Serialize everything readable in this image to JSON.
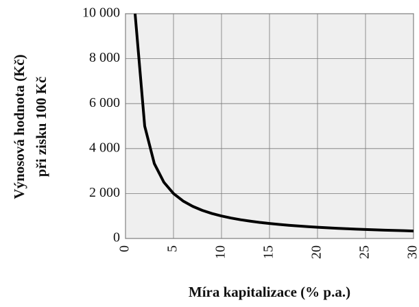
{
  "chart_data": {
    "type": "line",
    "xlabel": "Míra kapitalizace (% p.a.)",
    "ylabel": [
      "Výnosová hodnota (Kč)",
      "při zisku 100 Kč"
    ],
    "x": [
      1,
      2,
      3,
      4,
      5,
      6,
      7,
      8,
      9,
      10,
      11,
      12,
      13,
      14,
      15,
      16,
      17,
      18,
      19,
      20,
      21,
      22,
      23,
      24,
      25,
      26,
      27,
      28,
      29,
      30
    ],
    "series": [
      {
        "name": "Výnosová hodnota",
        "color": "#000000",
        "values": [
          10000,
          5000,
          3333,
          2500,
          2000,
          1667,
          1429,
          1250,
          1111,
          1000,
          909,
          833,
          769,
          714,
          667,
          625,
          588,
          556,
          526,
          500,
          476,
          455,
          435,
          417,
          400,
          385,
          370,
          357,
          345,
          333
        ]
      }
    ],
    "xlim": [
      0,
      30
    ],
    "xticks": [
      0,
      5,
      10,
      15,
      20,
      25,
      30
    ],
    "ylim": [
      0,
      10000
    ],
    "yticks": [
      0,
      {
        "value": 2000,
        "label": "2 000"
      },
      {
        "value": 4000,
        "label": "4 000"
      },
      {
        "value": 6000,
        "label": "6 000"
      },
      {
        "value": 8000,
        "label": "8 000"
      },
      {
        "value": 10000,
        "label": "10 000"
      }
    ],
    "grid": true
  }
}
